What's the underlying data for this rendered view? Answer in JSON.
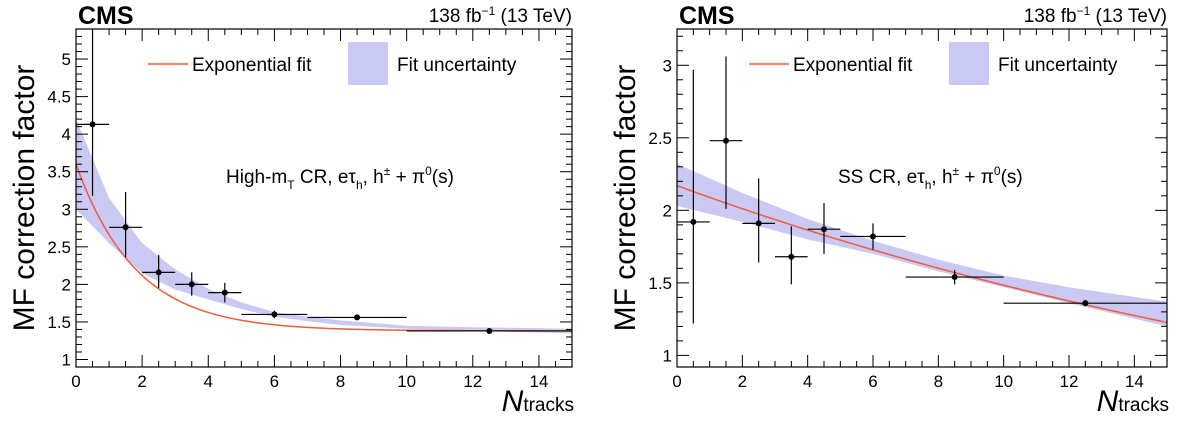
{
  "chart_data": [
    {
      "type": "scatter",
      "experiment": "CMS",
      "lumi": {
        "value": "138 fb",
        "exp": "−1",
        "energy": "(13 TeV)"
      },
      "ylabel": "MF correction factor",
      "xlabel": {
        "main": "N",
        "sub": "tracks"
      },
      "xlim": [
        0,
        15
      ],
      "ylim": [
        0.9,
        5.4
      ],
      "xticks": [
        0,
        2,
        4,
        6,
        8,
        10,
        12,
        14
      ],
      "xticks_minor_step": 0.5,
      "yticks": [
        1,
        1.5,
        2,
        2.5,
        3,
        3.5,
        4,
        4.5,
        5
      ],
      "yticks_minor_step": 0.1,
      "annotation": {
        "part1": "High-m",
        "sub1": "T",
        "part2": " CR, eτ",
        "sub2": "h",
        "part3": ", h",
        "sup3": "±",
        "part4": " + π",
        "sup4": "0",
        "part5": "(s)"
      },
      "legend": {
        "fit_label": "Exponential fit",
        "band_label": "Fit uncertainty",
        "placement": "top"
      },
      "points": [
        {
          "x": 0.5,
          "xerr": 0.5,
          "y": 4.13,
          "yerr_up": 1.3,
          "yerr_down": 0.95
        },
        {
          "x": 1.5,
          "xerr": 0.5,
          "y": 2.76,
          "yerr_up": 0.47,
          "yerr_down": 0.4
        },
        {
          "x": 2.5,
          "xerr": 0.5,
          "y": 2.16,
          "yerr_up": 0.23,
          "yerr_down": 0.21
        },
        {
          "x": 3.5,
          "xerr": 0.5,
          "y": 2.0,
          "yerr_up": 0.16,
          "yerr_down": 0.15
        },
        {
          "x": 4.5,
          "xerr": 0.5,
          "y": 1.89,
          "yerr_up": 0.13,
          "yerr_down": 0.13
        },
        {
          "x": 6.0,
          "xerr": 1.0,
          "y": 1.6,
          "yerr_up": 0.05,
          "yerr_down": 0.05
        },
        {
          "x": 8.5,
          "xerr": 1.5,
          "y": 1.56,
          "yerr_up": 0.02,
          "yerr_down": 0.02
        },
        {
          "x": 12.5,
          "xerr": 2.5,
          "y": 1.38,
          "yerr_up": 0.01,
          "yerr_down": 0.01
        }
      ],
      "fit": {
        "model": "c + a*exp(-b*x)",
        "c": 1.38,
        "a": 2.22,
        "b": 0.55,
        "band": [
          {
            "x": 0,
            "lo": 3.0,
            "hi": 4.2
          },
          {
            "x": 1,
            "lo": 2.55,
            "hi": 3.15
          },
          {
            "x": 2,
            "lo": 2.15,
            "hi": 2.55
          },
          {
            "x": 3,
            "lo": 1.93,
            "hi": 2.2
          },
          {
            "x": 4,
            "lo": 1.8,
            "hi": 1.94
          },
          {
            "x": 5,
            "lo": 1.67,
            "hi": 1.76
          },
          {
            "x": 6,
            "lo": 1.57,
            "hi": 1.63
          },
          {
            "x": 7,
            "lo": 1.51,
            "hi": 1.57
          },
          {
            "x": 8,
            "lo": 1.46,
            "hi": 1.52
          },
          {
            "x": 10,
            "lo": 1.41,
            "hi": 1.45
          },
          {
            "x": 12,
            "lo": 1.38,
            "hi": 1.43
          },
          {
            "x": 15,
            "lo": 1.35,
            "hi": 1.41
          }
        ]
      },
      "colors": {
        "fit": "#f25c3a",
        "band": "#c9c9f4",
        "points": "#000000"
      }
    },
    {
      "type": "scatter",
      "experiment": "CMS",
      "lumi": {
        "value": "138 fb",
        "exp": "−1",
        "energy": "(13 TeV)"
      },
      "ylabel": "MF correction factor",
      "xlabel": {
        "main": "N",
        "sub": "tracks"
      },
      "xlim": [
        0,
        15
      ],
      "ylim": [
        0.92,
        3.25
      ],
      "xticks": [
        0,
        2,
        4,
        6,
        8,
        10,
        12,
        14
      ],
      "xticks_minor_step": 0.5,
      "yticks": [
        1,
        1.5,
        2,
        2.5,
        3
      ],
      "yticks_minor_step": 0.1,
      "annotation": {
        "part1": "SS CR, eτ",
        "sub1": "h",
        "part2": ", h",
        "sup2": "±",
        "part3": " + π",
        "sup3": "0",
        "part4": "(s)"
      },
      "legend": {
        "fit_label": "Exponential fit",
        "band_label": "Fit uncertainty",
        "placement": "top"
      },
      "points": [
        {
          "x": 0.5,
          "xerr": 0.5,
          "y": 1.92,
          "yerr_up": 1.05,
          "yerr_down": 0.7
        },
        {
          "x": 1.5,
          "xerr": 0.5,
          "y": 2.48,
          "yerr_up": 0.58,
          "yerr_down": 0.47
        },
        {
          "x": 2.5,
          "xerr": 0.5,
          "y": 1.91,
          "yerr_up": 0.31,
          "yerr_down": 0.27
        },
        {
          "x": 3.5,
          "xerr": 0.5,
          "y": 1.68,
          "yerr_up": 0.21,
          "yerr_down": 0.19
        },
        {
          "x": 4.5,
          "xerr": 0.5,
          "y": 1.87,
          "yerr_up": 0.18,
          "yerr_down": 0.17
        },
        {
          "x": 6.0,
          "xerr": 1.0,
          "y": 1.82,
          "yerr_up": 0.09,
          "yerr_down": 0.09
        },
        {
          "x": 8.5,
          "xerr": 1.5,
          "y": 1.54,
          "yerr_up": 0.05,
          "yerr_down": 0.05
        },
        {
          "x": 12.5,
          "xerr": 2.5,
          "y": 1.36,
          "yerr_up": 0.02,
          "yerr_down": 0.02
        }
      ],
      "fit": {
        "model": "a*exp(-b*x)",
        "c": 0,
        "a": 2.17,
        "b": 0.038,
        "band": [
          {
            "x": 0,
            "lo": 2.03,
            "hi": 2.32
          },
          {
            "x": 2,
            "lo": 1.92,
            "hi": 2.12
          },
          {
            "x": 4,
            "lo": 1.8,
            "hi": 1.94
          },
          {
            "x": 6,
            "lo": 1.7,
            "hi": 1.79
          },
          {
            "x": 8,
            "lo": 1.58,
            "hi": 1.66
          },
          {
            "x": 10,
            "lo": 1.47,
            "hi": 1.55
          },
          {
            "x": 12,
            "lo": 1.36,
            "hi": 1.47
          },
          {
            "x": 15,
            "lo": 1.2,
            "hi": 1.37
          }
        ]
      },
      "colors": {
        "fit": "#f25c3a",
        "band": "#c9c9f4",
        "points": "#000000"
      }
    }
  ]
}
